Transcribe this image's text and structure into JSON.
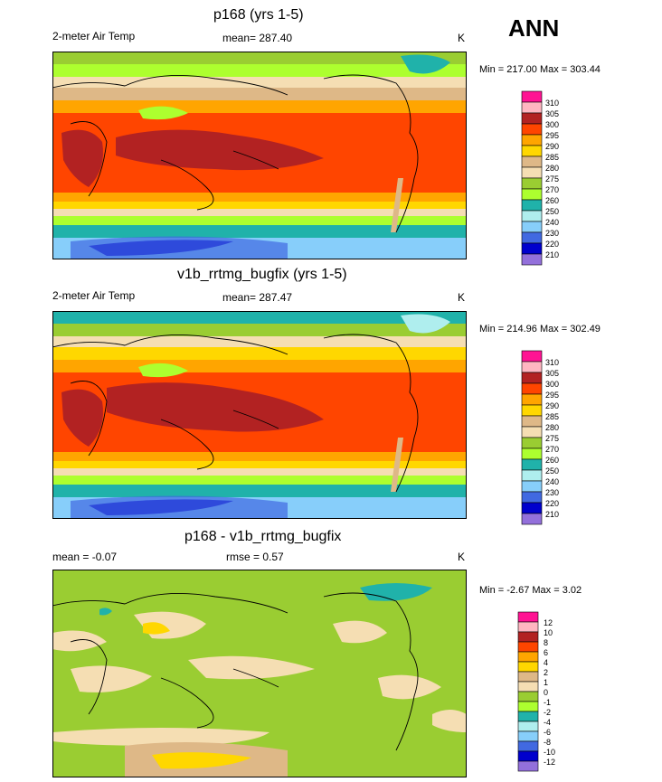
{
  "season": "ANN",
  "palette": {
    "c310": "#ff1493",
    "c305": "#ffb6c1",
    "c300": "#b22222",
    "c295": "#ff4500",
    "c290": "#ffa500",
    "c285": "#ffd700",
    "c280": "#deb887",
    "c275": "#f5deb3",
    "c270": "#9acd32",
    "c260": "#adff2f",
    "c250": "#20b2aa",
    "c240": "#afeeee",
    "c230": "#87cefa",
    "c220": "#4169e1",
    "c210": "#0000cd",
    "c200": "#9370db"
  },
  "panels": [
    {
      "id": "p1",
      "title": "p168 (yrs 1-5)",
      "left_label": "2-meter Air Temp",
      "center_label": "mean= 287.40",
      "unit": "K",
      "minmax": "Min = 217.00 Max = 303.44",
      "legend_labels": [
        "310",
        "305",
        "300",
        "295",
        "290",
        "285",
        "280",
        "275",
        "270",
        "260",
        "250",
        "240",
        "230",
        "220",
        "210"
      ]
    },
    {
      "id": "p2",
      "title": "v1b_rrtmg_bugfix (yrs 1-5)",
      "left_label": "2-meter Air Temp",
      "center_label": "mean= 287.47",
      "unit": "K",
      "minmax": "Min = 214.96 Max = 302.49",
      "legend_labels": [
        "310",
        "305",
        "300",
        "295",
        "290",
        "285",
        "280",
        "275",
        "270",
        "260",
        "250",
        "240",
        "230",
        "220",
        "210"
      ]
    },
    {
      "id": "p3",
      "title": "p168 - v1b_rrtmg_bugfix",
      "left_label": "mean =  -0.07",
      "center_label": "rmse =   0.57",
      "unit": "K",
      "minmax": "Min =  -2.67 Max =   3.02",
      "legend_labels": [
        "12",
        "10",
        "8",
        "6",
        "4",
        "2",
        "1",
        "0",
        "-1",
        "-2",
        "-4",
        "-6",
        "-8",
        "-10",
        "-12"
      ]
    }
  ]
}
